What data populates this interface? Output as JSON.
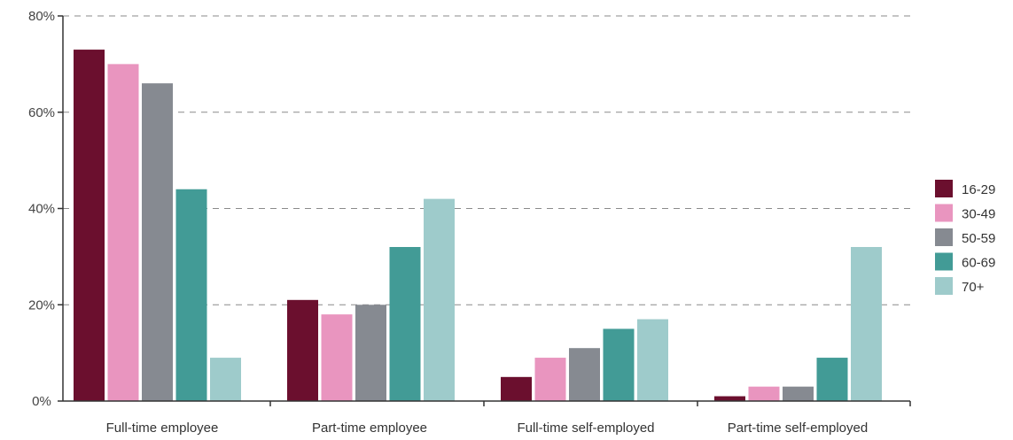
{
  "chart_data": {
    "type": "bar",
    "categories": [
      "Full-time employee",
      "Part-time employee",
      "Full-time self-employed",
      "Part-time self-employed"
    ],
    "series": [
      {
        "name": "16-29",
        "color": "#6b0f2e",
        "values": [
          73,
          21,
          5,
          1
        ]
      },
      {
        "name": "30-49",
        "color": "#e995bf",
        "values": [
          70,
          18,
          9,
          3
        ]
      },
      {
        "name": "50-59",
        "color": "#868a91",
        "values": [
          66,
          20,
          11,
          3
        ]
      },
      {
        "name": "60-69",
        "color": "#429b96",
        "values": [
          44,
          32,
          15,
          9
        ]
      },
      {
        "name": "70+",
        "color": "#9ecbcb",
        "values": [
          9,
          42,
          17,
          32
        ]
      }
    ],
    "ylim": [
      0,
      80
    ],
    "yticks": [
      0,
      20,
      40,
      60,
      80
    ],
    "ytick_labels": [
      "0%",
      "20%",
      "40%",
      "60%",
      "80%"
    ],
    "grid": "dashed horizontal",
    "legend_position": "right",
    "title": "",
    "xlabel": "",
    "ylabel": ""
  }
}
